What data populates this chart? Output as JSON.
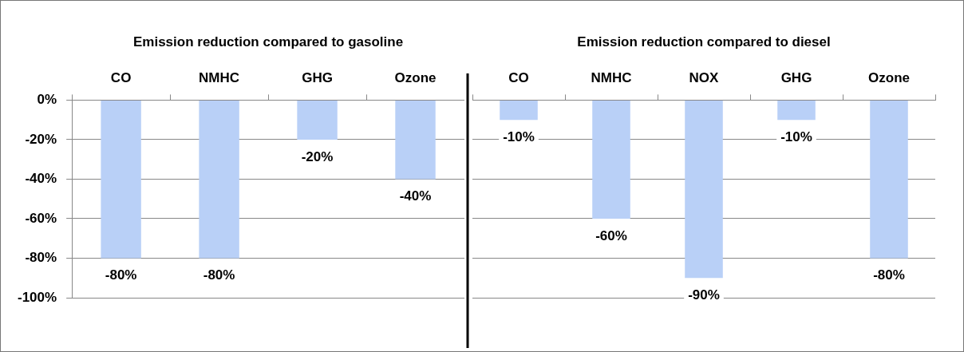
{
  "chart_data": [
    {
      "type": "bar",
      "title": "Emission reduction compared to gasoline",
      "categories": [
        "CO",
        "NMHC",
        "GHG",
        "Ozone"
      ],
      "values": [
        -80,
        -80,
        -20,
        -40
      ],
      "value_labels": [
        "-80%",
        "-80%",
        "-20%",
        "-40%"
      ],
      "color": "#b9d0f7",
      "ylim": [
        -100,
        0
      ],
      "yticks": [
        {
          "value": 0,
          "label": "0%"
        },
        {
          "value": -20,
          "label": "-20%"
        },
        {
          "value": -40,
          "label": "-40%"
        },
        {
          "value": -60,
          "label": "-60%"
        },
        {
          "value": -80,
          "label": "-80%"
        },
        {
          "value": -100,
          "label": "-100%"
        }
      ],
      "grid": "y"
    },
    {
      "type": "bar",
      "title": "Emission reduction compared to diesel",
      "categories": [
        "CO",
        "NMHC",
        "NOX",
        "GHG",
        "Ozone"
      ],
      "values": [
        -10,
        -60,
        -90,
        -10,
        -80
      ],
      "value_labels": [
        "-10%",
        "-60%",
        "-90%",
        "-10%",
        "-80%"
      ],
      "color": "#b9d0f7",
      "ylim": [
        -100,
        0
      ],
      "yticks": [
        {
          "value": 0,
          "label": null
        },
        {
          "value": -20,
          "label": null
        },
        {
          "value": -40,
          "label": null
        },
        {
          "value": -60,
          "label": null
        },
        {
          "value": -80,
          "label": null
        },
        {
          "value": -100,
          "label": null
        }
      ],
      "grid": "y",
      "tick_labels": "x"
    }
  ]
}
